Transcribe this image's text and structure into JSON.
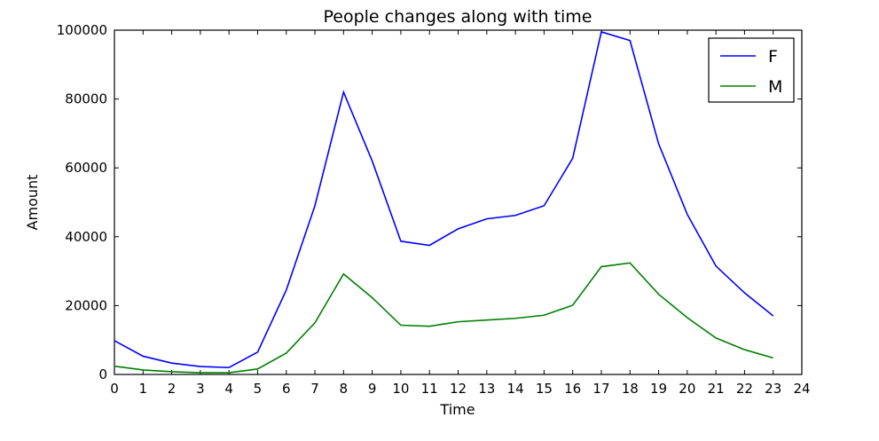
{
  "chart_data": {
    "type": "line",
    "title": "People changes along with time",
    "xlabel": "Time",
    "ylabel": "Amount",
    "xlim": [
      0,
      24
    ],
    "ylim": [
      0,
      100000
    ],
    "xticks": [
      0,
      1,
      2,
      3,
      4,
      5,
      6,
      7,
      8,
      9,
      10,
      11,
      12,
      13,
      14,
      15,
      16,
      17,
      18,
      19,
      20,
      21,
      22,
      23,
      24
    ],
    "yticks": [
      0,
      20000,
      40000,
      60000,
      80000,
      100000
    ],
    "grid": false,
    "legend_position": "top-right",
    "x": [
      0,
      1,
      2,
      3,
      4,
      5,
      6,
      7,
      8,
      9,
      10,
      11,
      12,
      13,
      14,
      15,
      16,
      17,
      18,
      19,
      20,
      21,
      22,
      23
    ],
    "series": [
      {
        "name": "F",
        "color": "#0000ff",
        "values": [
          9800,
          5300,
          3300,
          2300,
          2000,
          6500,
          24500,
          49000,
          82000,
          62000,
          38700,
          37500,
          42300,
          45200,
          46200,
          49000,
          62800,
          99500,
          97000,
          67000,
          46500,
          31500,
          23700,
          17000
        ]
      },
      {
        "name": "M",
        "color": "#008000",
        "values": [
          2400,
          1300,
          800,
          500,
          500,
          1600,
          6200,
          15000,
          29200,
          22300,
          14300,
          14000,
          15300,
          15800,
          16300,
          17200,
          20100,
          31300,
          32400,
          23300,
          16500,
          10600,
          7200,
          4800
        ]
      }
    ]
  }
}
